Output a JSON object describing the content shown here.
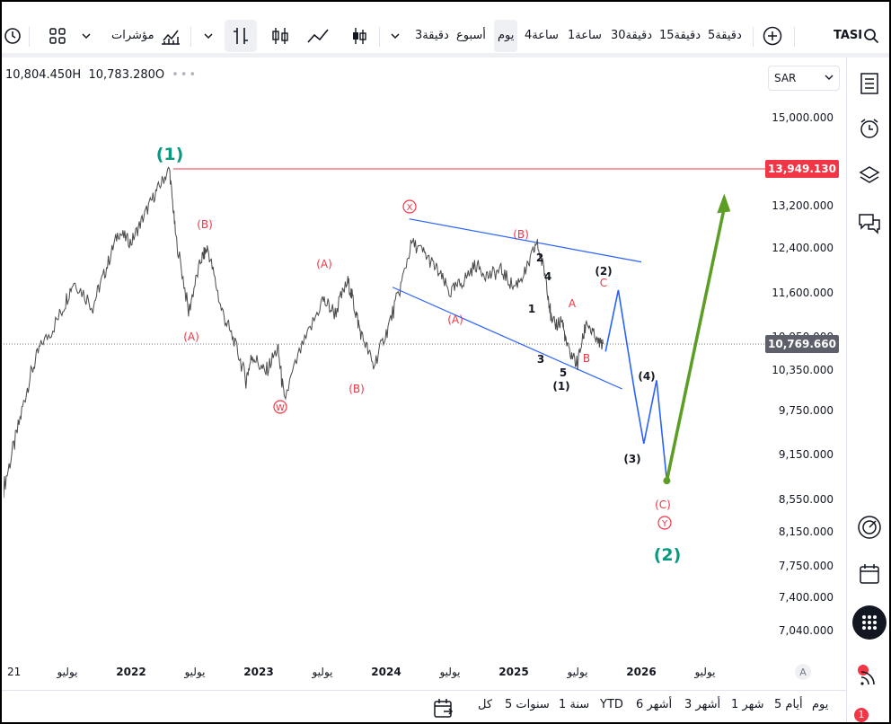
{
  "toolbar": {
    "symbol": "TASI",
    "timeframes": [
      "5دقيقة",
      "15دقيقة",
      "30دقيقة",
      "1ساعة",
      "4ساعة",
      "يوم",
      "أسبوع",
      "3دقيقة"
    ],
    "selected_timeframe": "يوم",
    "indicators_label": "مؤشرات"
  },
  "ohlc": {
    "high": "10,804.450H",
    "close": "10,783.280O"
  },
  "currency": "SAR",
  "bottombar": {
    "ranges": [
      "يوم",
      "5 أيام",
      "1 شهر",
      "3 أشهر",
      "6 أشهر",
      "YTD",
      "1 سنة",
      "5 سنوات",
      "كل"
    ]
  },
  "sidebar": {
    "alert_badge": "1"
  },
  "chart_data": {
    "type": "line",
    "symbol": "TASI",
    "currency": "SAR",
    "x_ticks": [
      "21",
      "يوليو",
      "2022",
      "يوليو",
      "2023",
      "يوليو",
      "2024",
      "يوليو",
      "2025",
      "يوليو",
      "2026",
      "يوليو"
    ],
    "y_ticks": [
      "15,000.000",
      "13,200.000",
      "12,400.000",
      "11,600.000",
      "10,350.000",
      "9,750.000",
      "9,150.000",
      "8,550.000",
      "8,150.000",
      "7,750.000",
      "7,400.000",
      "7,040.000"
    ],
    "y_tick_values": [
      15000,
      13200,
      12400,
      11600,
      10350,
      9750,
      9150,
      8550,
      8150,
      7750,
      7400,
      7040
    ],
    "hidden_tick": "10,950.000",
    "price_labels": {
      "resistance": "13,949.130",
      "last": "10,769.660"
    },
    "series": [
      {
        "values": [
          [
            2021.0,
            8700
          ],
          [
            2021.1,
            9400
          ],
          [
            2021.2,
            10200
          ],
          [
            2021.3,
            10800
          ],
          [
            2021.45,
            11300
          ],
          [
            2021.55,
            11800
          ],
          [
            2021.7,
            11400
          ],
          [
            2021.8,
            12000
          ],
          [
            2021.9,
            12700
          ],
          [
            2022.0,
            12500
          ],
          [
            2022.1,
            13000
          ],
          [
            2022.2,
            13500
          ],
          [
            2022.3,
            13949
          ],
          [
            2022.35,
            12600
          ],
          [
            2022.45,
            11300
          ],
          [
            2022.55,
            12200
          ],
          [
            2022.6,
            12400
          ],
          [
            2022.7,
            11400
          ],
          [
            2022.8,
            10900
          ],
          [
            2022.9,
            10200
          ],
          [
            2022.95,
            10600
          ],
          [
            2023.05,
            10300
          ],
          [
            2023.15,
            10700
          ],
          [
            2023.2,
            9900
          ],
          [
            2023.35,
            10800
          ],
          [
            2023.5,
            11500
          ],
          [
            2023.6,
            11300
          ],
          [
            2023.7,
            11800
          ],
          [
            2023.75,
            11400
          ],
          [
            2023.8,
            11000
          ],
          [
            2023.9,
            10400
          ],
          [
            2024.0,
            11000
          ],
          [
            2024.1,
            11600
          ],
          [
            2024.2,
            12500
          ],
          [
            2024.3,
            12300
          ],
          [
            2024.4,
            12000
          ],
          [
            2024.5,
            11600
          ],
          [
            2024.6,
            11800
          ],
          [
            2024.7,
            12100
          ],
          [
            2024.8,
            11900
          ],
          [
            2024.9,
            12000
          ],
          [
            2025.0,
            11700
          ],
          [
            2025.1,
            12000
          ],
          [
            2025.18,
            12500
          ],
          [
            2025.25,
            11900
          ],
          [
            2025.3,
            11100
          ],
          [
            2025.38,
            11200
          ],
          [
            2025.42,
            10700
          ],
          [
            2025.5,
            10450
          ],
          [
            2025.57,
            11200
          ],
          [
            2025.65,
            10850
          ],
          [
            2025.7,
            10770
          ]
        ]
      }
    ],
    "projection": [
      [
        2025.72,
        10650
      ],
      [
        2025.82,
        11650
      ],
      [
        2025.95,
        10000
      ],
      [
        2026.02,
        9300
      ],
      [
        2026.12,
        10200
      ],
      [
        2026.2,
        8800
      ]
    ],
    "projection2": [
      [
        2026.2,
        8800
      ],
      [
        2026.65,
        13450
      ]
    ],
    "wave_labels": {
      "black": [
        "(1)",
        "2",
        "4",
        "1",
        "3",
        "5",
        "(2)",
        "(3)",
        "(4)"
      ],
      "red": [
        "(B)",
        "(A)",
        "(A)",
        "(B)",
        "(A)",
        "(B)",
        "A",
        "B",
        "C",
        "(C)"
      ],
      "green": [
        "(1)",
        "(2)"
      ],
      "circled": [
        "X",
        "W",
        "Y"
      ]
    },
    "grid": false
  }
}
